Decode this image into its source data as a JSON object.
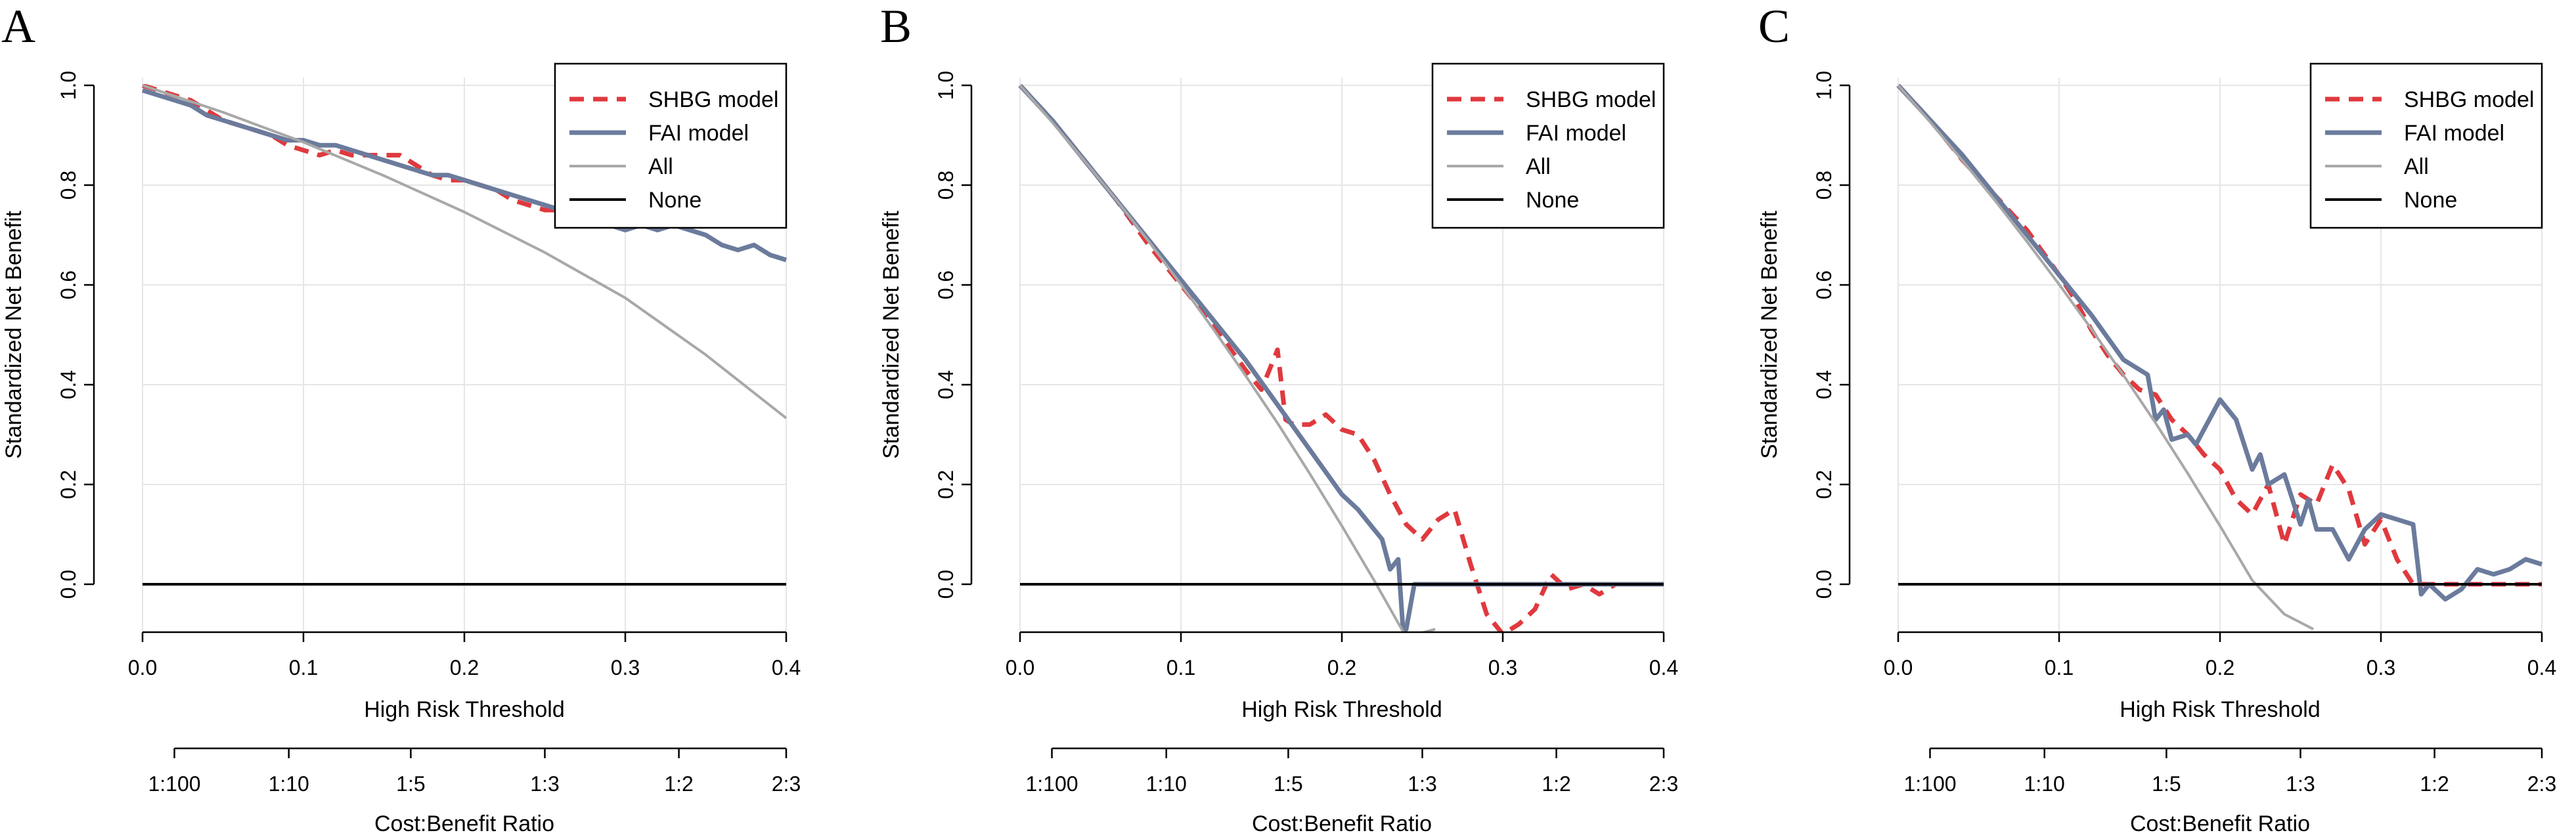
{
  "chart_data": [
    {
      "type": "line",
      "panel_label": "A",
      "xlabel": "High Risk Threshold",
      "ylabel": "Standardized Net Benefit",
      "xlim": [
        0,
        0.4
      ],
      "ylim": [
        -0.09,
        1.0
      ],
      "xticks": [
        0.0,
        0.1,
        0.2,
        0.3,
        0.4
      ],
      "xtick_labels": [
        "0.0",
        "0.1",
        "0.2",
        "0.3",
        "0.4"
      ],
      "yticks": [
        0.0,
        0.2,
        0.4,
        0.6,
        0.8,
        1.0
      ],
      "ytick_labels": [
        "0.0",
        "0.2",
        "0.4",
        "0.6",
        "0.8",
        "1.0"
      ],
      "cost_axis_label": "Cost:Benefit Ratio",
      "cost_ticks": [
        0.01,
        0.0909,
        0.1667,
        0.25,
        0.3333,
        0.4
      ],
      "cost_tick_labels": [
        "1:100",
        "1:10",
        "1:5",
        "1:3",
        "1:2",
        "2:3"
      ],
      "legend": {
        "position": "top-right",
        "entries": [
          {
            "label": "SHBG model",
            "color": "#e0393e",
            "style": "dashed"
          },
          {
            "label": "FAI model",
            "color": "#6b7b9c",
            "style": "solid"
          },
          {
            "label": "All",
            "color": "#a8a8a8",
            "style": "solid"
          },
          {
            "label": "None",
            "color": "#000000",
            "style": "solid"
          }
        ]
      },
      "series": [
        {
          "name": "SHBG model",
          "x": [
            0,
            0.01,
            0.02,
            0.03,
            0.04,
            0.05,
            0.06,
            0.07,
            0.08,
            0.09,
            0.1,
            0.11,
            0.12,
            0.13,
            0.14,
            0.15,
            0.16,
            0.17,
            0.18,
            0.19,
            0.2,
            0.21,
            0.22,
            0.23,
            0.24,
            0.25,
            0.26,
            0.27,
            0.28
          ],
          "y": [
            1.0,
            0.99,
            0.98,
            0.97,
            0.95,
            0.93,
            0.92,
            0.91,
            0.9,
            0.88,
            0.87,
            0.86,
            0.87,
            0.86,
            0.86,
            0.86,
            0.86,
            0.84,
            0.82,
            0.81,
            0.81,
            0.8,
            0.79,
            0.77,
            0.76,
            0.75,
            0.75,
            0.74,
            0.74
          ]
        },
        {
          "name": "FAI model",
          "x": [
            0,
            0.01,
            0.02,
            0.03,
            0.04,
            0.05,
            0.06,
            0.07,
            0.08,
            0.09,
            0.1,
            0.11,
            0.12,
            0.13,
            0.14,
            0.15,
            0.16,
            0.17,
            0.18,
            0.19,
            0.2,
            0.21,
            0.22,
            0.23,
            0.24,
            0.25,
            0.26,
            0.27,
            0.28,
            0.29,
            0.3,
            0.31,
            0.32,
            0.33,
            0.34,
            0.35,
            0.36,
            0.37,
            0.38,
            0.39,
            0.4
          ],
          "y": [
            0.99,
            0.98,
            0.97,
            0.96,
            0.94,
            0.93,
            0.92,
            0.91,
            0.9,
            0.89,
            0.89,
            0.88,
            0.88,
            0.87,
            0.86,
            0.85,
            0.84,
            0.83,
            0.82,
            0.82,
            0.81,
            0.8,
            0.79,
            0.78,
            0.77,
            0.76,
            0.75,
            0.74,
            0.73,
            0.72,
            0.71,
            0.72,
            0.71,
            0.72,
            0.71,
            0.7,
            0.68,
            0.67,
            0.68,
            0.66,
            0.65
          ]
        },
        {
          "name": "All",
          "x": [
            0,
            0.05,
            0.1,
            0.15,
            0.2,
            0.25,
            0.3,
            0.35,
            0.4
          ],
          "y": [
            1.0,
            0.946,
            0.886,
            0.819,
            0.746,
            0.665,
            0.574,
            0.46,
            0.333
          ]
        },
        {
          "name": "None",
          "x": [
            0,
            0.4
          ],
          "y": [
            0,
            0
          ]
        }
      ]
    },
    {
      "type": "line",
      "panel_label": "B",
      "xlabel": "High Risk Threshold",
      "ylabel": "Standardized Net Benefit",
      "xlim": [
        0,
        0.4
      ],
      "ylim": [
        -0.09,
        1.0
      ],
      "xticks": [
        0.0,
        0.1,
        0.2,
        0.3,
        0.4
      ],
      "xtick_labels": [
        "0.0",
        "0.1",
        "0.2",
        "0.3",
        "0.4"
      ],
      "yticks": [
        0.0,
        0.2,
        0.4,
        0.6,
        0.8,
        1.0
      ],
      "ytick_labels": [
        "0.0",
        "0.2",
        "0.4",
        "0.6",
        "0.8",
        "1.0"
      ],
      "cost_axis_label": "Cost:Benefit Ratio",
      "cost_ticks": [
        0.01,
        0.0909,
        0.1667,
        0.25,
        0.3333,
        0.4
      ],
      "cost_tick_labels": [
        "1:100",
        "1:10",
        "1:5",
        "1:3",
        "1:2",
        "2:3"
      ],
      "legend": {
        "position": "top-right",
        "entries": [
          {
            "label": "SHBG model",
            "color": "#e0393e",
            "style": "dashed"
          },
          {
            "label": "FAI model",
            "color": "#6b7b9c",
            "style": "solid"
          },
          {
            "label": "All",
            "color": "#a8a8a8",
            "style": "solid"
          },
          {
            "label": "None",
            "color": "#000000",
            "style": "solid"
          }
        ]
      },
      "series": [
        {
          "name": "SHBG model",
          "x": [
            0,
            0.02,
            0.04,
            0.06,
            0.08,
            0.1,
            0.12,
            0.14,
            0.15,
            0.16,
            0.165,
            0.17,
            0.18,
            0.19,
            0.2,
            0.21,
            0.22,
            0.23,
            0.24,
            0.25,
            0.26,
            0.27,
            0.28,
            0.29,
            0.3,
            0.31,
            0.32,
            0.33,
            0.34,
            0.35,
            0.36,
            0.37,
            0.38,
            0.39,
            0.4
          ],
          "y": [
            1.0,
            0.93,
            0.85,
            0.77,
            0.68,
            0.6,
            0.52,
            0.43,
            0.39,
            0.47,
            0.33,
            0.32,
            0.32,
            0.34,
            0.31,
            0.3,
            0.25,
            0.18,
            0.12,
            0.09,
            0.13,
            0.15,
            0.04,
            -0.06,
            -0.1,
            -0.08,
            -0.05,
            0.02,
            -0.01,
            0.0,
            -0.02,
            0.0,
            0.0,
            0.0,
            0.0
          ]
        },
        {
          "name": "FAI model",
          "x": [
            0,
            0.02,
            0.04,
            0.06,
            0.08,
            0.1,
            0.12,
            0.14,
            0.16,
            0.18,
            0.2,
            0.21,
            0.22,
            0.225,
            0.23,
            0.235,
            0.238,
            0.24,
            0.245,
            0.25,
            0.26,
            0.3,
            0.4
          ],
          "y": [
            1.0,
            0.93,
            0.85,
            0.77,
            0.69,
            0.61,
            0.53,
            0.45,
            0.36,
            0.27,
            0.18,
            0.15,
            0.11,
            0.09,
            0.03,
            0.05,
            -0.09,
            -0.09,
            0.0,
            0.0,
            0.0,
            0.0,
            0.0
          ]
        },
        {
          "name": "All",
          "x": [
            0,
            0.02,
            0.04,
            0.06,
            0.08,
            0.1,
            0.12,
            0.14,
            0.16,
            0.18,
            0.2,
            0.22,
            0.24,
            0.258
          ],
          "y": [
            1.0,
            0.926,
            0.849,
            0.77,
            0.687,
            0.601,
            0.512,
            0.419,
            0.323,
            0.222,
            0.117,
            0.008,
            -0.106,
            -0.09
          ]
        },
        {
          "name": "None",
          "x": [
            0,
            0.4
          ],
          "y": [
            0,
            0
          ]
        }
      ]
    },
    {
      "type": "line",
      "panel_label": "C",
      "xlabel": "High Risk Threshold",
      "ylabel": "Standardized Net Benefit",
      "xlim": [
        0,
        0.4
      ],
      "ylim": [
        -0.09,
        1.0
      ],
      "xticks": [
        0.0,
        0.1,
        0.2,
        0.3,
        0.4
      ],
      "xtick_labels": [
        "0.0",
        "0.1",
        "0.2",
        "0.3",
        "0.4"
      ],
      "yticks": [
        0.0,
        0.2,
        0.4,
        0.6,
        0.8,
        1.0
      ],
      "ytick_labels": [
        "0.0",
        "0.2",
        "0.4",
        "0.6",
        "0.8",
        "1.0"
      ],
      "cost_axis_label": "Cost:Benefit Ratio",
      "cost_ticks": [
        0.01,
        0.0909,
        0.1667,
        0.25,
        0.3333,
        0.4
      ],
      "cost_tick_labels": [
        "1:100",
        "1:10",
        "1:5",
        "1:3",
        "1:2",
        "2:3"
      ],
      "legend": {
        "position": "top-right",
        "entries": [
          {
            "label": "SHBG model",
            "color": "#e0393e",
            "style": "dashed"
          },
          {
            "label": "FAI model",
            "color": "#6b7b9c",
            "style": "solid"
          },
          {
            "label": "All",
            "color": "#a8a8a8",
            "style": "solid"
          },
          {
            "label": "None",
            "color": "#000000",
            "style": "solid"
          }
        ]
      },
      "series": [
        {
          "name": "SHBG model",
          "x": [
            0,
            0.02,
            0.04,
            0.06,
            0.08,
            0.1,
            0.11,
            0.12,
            0.13,
            0.14,
            0.15,
            0.16,
            0.17,
            0.18,
            0.19,
            0.2,
            0.21,
            0.22,
            0.23,
            0.24,
            0.25,
            0.26,
            0.27,
            0.28,
            0.29,
            0.3,
            0.31,
            0.32,
            0.33,
            0.34,
            0.35,
            0.36,
            0.37,
            0.38,
            0.39,
            0.4
          ],
          "y": [
            1.0,
            0.93,
            0.85,
            0.78,
            0.71,
            0.62,
            0.57,
            0.51,
            0.46,
            0.42,
            0.39,
            0.38,
            0.33,
            0.3,
            0.26,
            0.23,
            0.17,
            0.14,
            0.2,
            0.08,
            0.18,
            0.16,
            0.24,
            0.19,
            0.08,
            0.13,
            0.05,
            0.0,
            0.0,
            0.0,
            0.0,
            0.0,
            0.0,
            0.0,
            0.0,
            0.0
          ]
        },
        {
          "name": "FAI model",
          "x": [
            0,
            0.02,
            0.04,
            0.06,
            0.08,
            0.1,
            0.12,
            0.14,
            0.155,
            0.16,
            0.165,
            0.17,
            0.18,
            0.185,
            0.19,
            0.2,
            0.21,
            0.22,
            0.225,
            0.23,
            0.24,
            0.25,
            0.255,
            0.26,
            0.27,
            0.28,
            0.29,
            0.3,
            0.31,
            0.32,
            0.325,
            0.33,
            0.34,
            0.35,
            0.36,
            0.37,
            0.38,
            0.39,
            0.4
          ],
          "y": [
            1.0,
            0.93,
            0.86,
            0.78,
            0.7,
            0.62,
            0.54,
            0.45,
            0.42,
            0.33,
            0.35,
            0.29,
            0.3,
            0.28,
            0.31,
            0.37,
            0.33,
            0.23,
            0.26,
            0.2,
            0.22,
            0.12,
            0.17,
            0.11,
            0.11,
            0.05,
            0.11,
            0.14,
            0.13,
            0.12,
            -0.02,
            0.0,
            -0.03,
            -0.01,
            0.03,
            0.02,
            0.03,
            0.05,
            0.04
          ]
        },
        {
          "name": "All",
          "x": [
            0,
            0.02,
            0.04,
            0.06,
            0.08,
            0.1,
            0.12,
            0.14,
            0.16,
            0.18,
            0.2,
            0.22,
            0.24,
            0.258
          ],
          "y": [
            1.0,
            0.926,
            0.849,
            0.77,
            0.687,
            0.601,
            0.512,
            0.419,
            0.323,
            0.222,
            0.117,
            0.008,
            -0.06,
            -0.09
          ]
        },
        {
          "name": "None",
          "x": [
            0,
            0.4
          ],
          "y": [
            0,
            0
          ]
        }
      ]
    }
  ]
}
